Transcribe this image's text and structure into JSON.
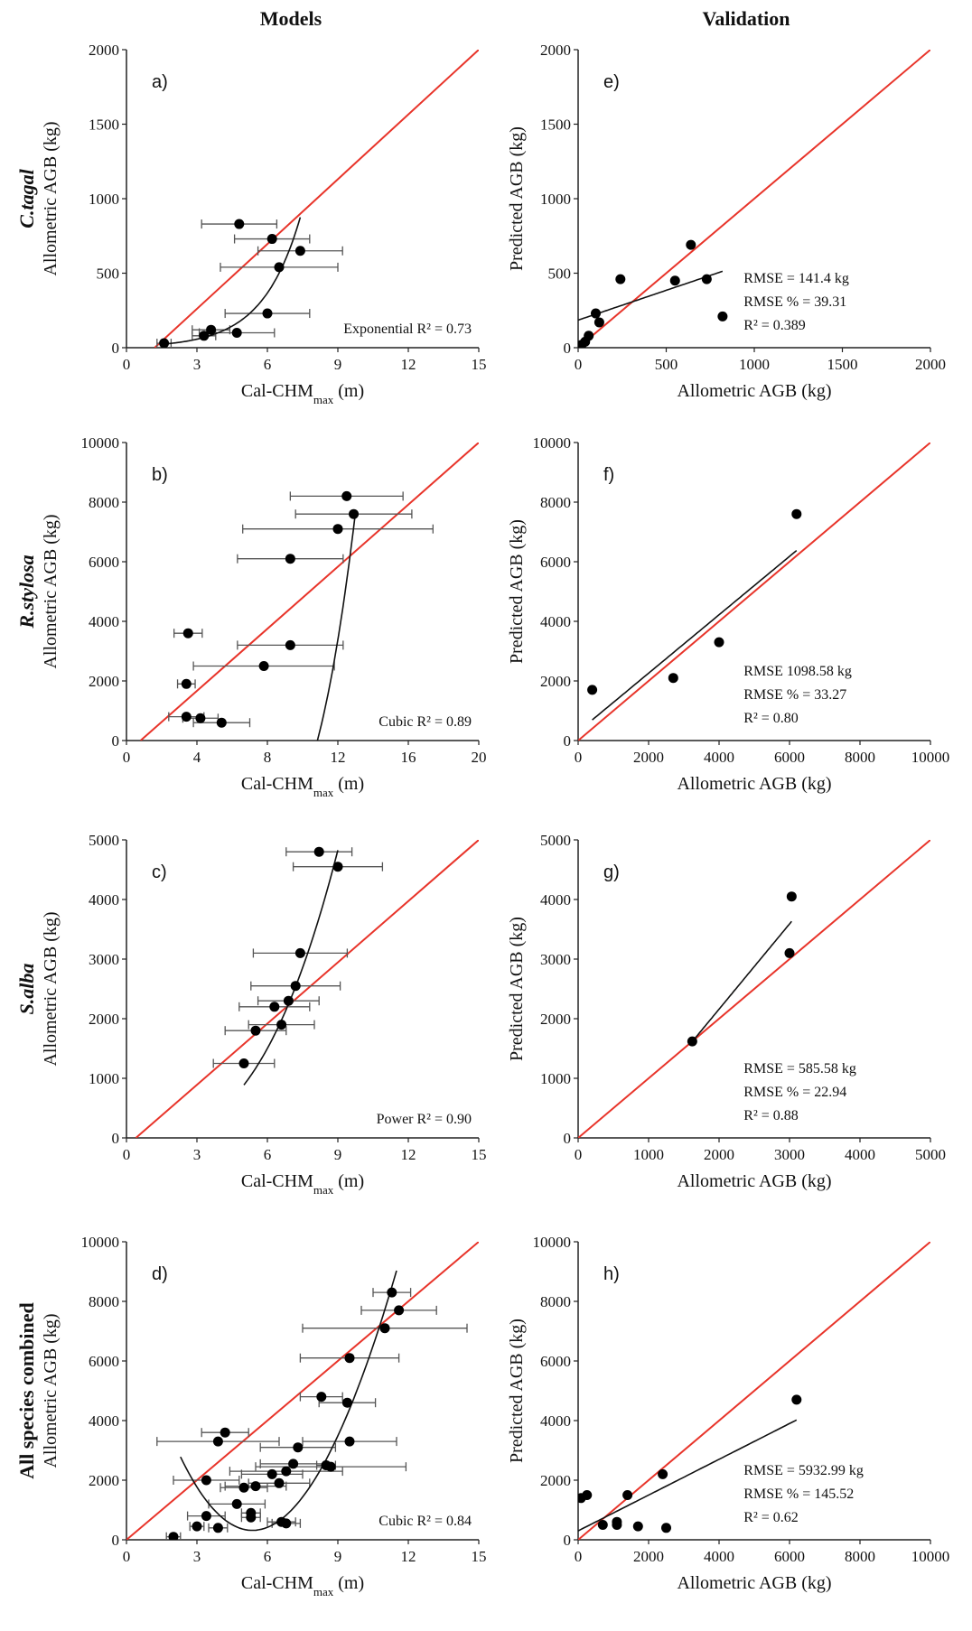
{
  "titles": {
    "models": "Models",
    "validation": "Validation"
  },
  "chart_data": [
    {
      "id": "a",
      "type": "scatter",
      "panel_label": "a)",
      "title": "",
      "xlabel": "Cal-CHM",
      "xlabel_sub": "max",
      "xlabel_unit": " (m)",
      "ylabel": "Allometric AGB (kg)",
      "row_label": "C.tagal",
      "row_label_italic": true,
      "xlim": [
        0,
        15
      ],
      "ylim": [
        0,
        2000
      ],
      "xticks": [
        0,
        3,
        6,
        9,
        12,
        15
      ],
      "yticks": [
        0,
        500,
        1000,
        1500,
        2000
      ],
      "identity_line": {
        "x": [
          1.2,
          15
        ],
        "y": [
          0,
          2000
        ]
      },
      "points": [
        {
          "x": 4.8,
          "y": 830,
          "xerr": 1.6
        },
        {
          "x": 6.2,
          "y": 730,
          "xerr": 1.6
        },
        {
          "x": 7.4,
          "y": 650,
          "xerr": 1.8
        },
        {
          "x": 6.5,
          "y": 540,
          "xerr": 2.5
        },
        {
          "x": 6.0,
          "y": 230,
          "xerr": 1.8
        },
        {
          "x": 4.7,
          "y": 100,
          "xerr": 1.6
        },
        {
          "x": 3.6,
          "y": 120,
          "xerr": 0.8
        },
        {
          "x": 3.3,
          "y": 80,
          "xerr": 0.5
        },
        {
          "x": 1.6,
          "y": 30,
          "xerr": 0.3
        }
      ],
      "fit": {
        "kind": "exponential",
        "a": 8.9,
        "b": 0.62,
        "x_from": 1.6,
        "x_to": 7.4
      },
      "annotation": [
        "Exponential R² = 0.73"
      ],
      "annotation_pos": "bottom-right"
    },
    {
      "id": "b",
      "type": "scatter",
      "panel_label": "b)",
      "xlabel": "Cal-CHM",
      "xlabel_sub": "max",
      "xlabel_unit": " (m)",
      "ylabel": "Allometric AGB (kg)",
      "row_label": "R.stylosa",
      "row_label_italic": true,
      "xlim": [
        0,
        20
      ],
      "ylim": [
        0,
        10000
      ],
      "xticks": [
        0,
        4,
        8,
        12,
        16,
        20
      ],
      "yticks": [
        0,
        2000,
        4000,
        6000,
        8000,
        10000
      ],
      "identity_line": {
        "x": [
          0.8,
          20
        ],
        "y": [
          0,
          10000
        ]
      },
      "points": [
        {
          "x": 12.5,
          "y": 8200,
          "xerr": 3.2
        },
        {
          "x": 12.9,
          "y": 7600,
          "xerr": 3.3
        },
        {
          "x": 12.0,
          "y": 7100,
          "xerr": 5.4
        },
        {
          "x": 9.3,
          "y": 6100,
          "xerr": 3.0
        },
        {
          "x": 3.5,
          "y": 3600,
          "xerr": 0.8
        },
        {
          "x": 9.3,
          "y": 3200,
          "xerr": 3.0
        },
        {
          "x": 7.8,
          "y": 2500,
          "xerr": 4.0
        },
        {
          "x": 3.4,
          "y": 1900,
          "xerr": 0.5
        },
        {
          "x": 3.4,
          "y": 800,
          "xerr": 1.0
        },
        {
          "x": 4.2,
          "y": 750,
          "xerr": 1.0
        },
        {
          "x": 5.4,
          "y": 600,
          "xerr": 1.6
        }
      ],
      "fit": {
        "kind": "cubic",
        "coef": [
          -2712.4,
          1963.2,
          -501.2,
          31.66
        ],
        "x_from": 3.4,
        "x_to": 13.0
      },
      "annotation": [
        "Cubic R² = 0.89"
      ],
      "annotation_pos": "bottom-right"
    },
    {
      "id": "c",
      "type": "scatter",
      "panel_label": "c)",
      "xlabel": "Cal-CHM",
      "xlabel_sub": "max",
      "xlabel_unit": " (m)",
      "ylabel": "Allometric AGB (kg)",
      "row_label": "S.alba",
      "row_label_italic": true,
      "xlim": [
        0,
        15
      ],
      "ylim": [
        0,
        5000
      ],
      "xticks": [
        0,
        3,
        6,
        9,
        12,
        15
      ],
      "yticks": [
        0,
        1000,
        2000,
        3000,
        4000,
        5000
      ],
      "identity_line": {
        "x": [
          0.4,
          15
        ],
        "y": [
          0,
          5000
        ]
      },
      "points": [
        {
          "x": 8.2,
          "y": 4800,
          "xerr": 1.4
        },
        {
          "x": 9.0,
          "y": 4550,
          "xerr": 1.9
        },
        {
          "x": 7.4,
          "y": 3100,
          "xerr": 2.0
        },
        {
          "x": 7.2,
          "y": 2550,
          "xerr": 1.9
        },
        {
          "x": 6.9,
          "y": 2300,
          "xerr": 1.3
        },
        {
          "x": 6.3,
          "y": 2200,
          "xerr": 1.5
        },
        {
          "x": 6.6,
          "y": 1900,
          "xerr": 1.4
        },
        {
          "x": 5.5,
          "y": 1800,
          "xerr": 1.3
        },
        {
          "x": 5.0,
          "y": 1250,
          "xerr": 1.3
        }
      ],
      "fit": {
        "kind": "power",
        "a": 8.62,
        "b": 2.88,
        "x_from": 5.0,
        "x_to": 9.0
      },
      "annotation": [
        "Power R² = 0.90"
      ],
      "annotation_pos": "bottom-right"
    },
    {
      "id": "d",
      "type": "scatter",
      "panel_label": "d)",
      "xlabel": "Cal-CHM",
      "xlabel_sub": "max",
      "xlabel_unit": " (m)",
      "ylabel": "Allometric AGB (kg)",
      "row_label": "All species combined",
      "row_label_italic": false,
      "xlim": [
        0,
        15
      ],
      "ylim": [
        0,
        10000
      ],
      "xticks": [
        0,
        3,
        6,
        9,
        12,
        15
      ],
      "yticks": [
        0,
        2000,
        4000,
        6000,
        8000,
        10000
      ],
      "identity_line": {
        "x": [
          0,
          15
        ],
        "y": [
          0,
          10000
        ]
      },
      "points": [
        {
          "x": 11.3,
          "y": 8300,
          "xerr": 0.8
        },
        {
          "x": 11.6,
          "y": 7700,
          "xerr": 1.6
        },
        {
          "x": 11.0,
          "y": 7100,
          "xerr": 3.5
        },
        {
          "x": 9.5,
          "y": 6100,
          "xerr": 2.1
        },
        {
          "x": 8.3,
          "y": 4800,
          "xerr": 0.9
        },
        {
          "x": 9.4,
          "y": 4600,
          "xerr": 1.2
        },
        {
          "x": 4.2,
          "y": 3600,
          "xerr": 1.0
        },
        {
          "x": 3.9,
          "y": 3300,
          "xerr": 2.6
        },
        {
          "x": 9.5,
          "y": 3300,
          "xerr": 2.0
        },
        {
          "x": 7.3,
          "y": 3100,
          "xerr": 1.6
        },
        {
          "x": 8.5,
          "y": 2500,
          "xerr": 0.4
        },
        {
          "x": 8.7,
          "y": 2450,
          "xerr": 3.2
        },
        {
          "x": 7.1,
          "y": 2550,
          "xerr": 1.4
        },
        {
          "x": 6.8,
          "y": 2300,
          "xerr": 2.4
        },
        {
          "x": 6.2,
          "y": 2200,
          "xerr": 1.3
        },
        {
          "x": 6.5,
          "y": 1900,
          "xerr": 1.3
        },
        {
          "x": 3.4,
          "y": 2000,
          "xerr": 1.4
        },
        {
          "x": 5.5,
          "y": 1800,
          "xerr": 1.3
        },
        {
          "x": 4.7,
          "y": 1200,
          "xerr": 1.2
        },
        {
          "x": 5.0,
          "y": 1750,
          "xerr": 1.0
        },
        {
          "x": 5.3,
          "y": 900,
          "xerr": 0.4
        },
        {
          "x": 5.3,
          "y": 750,
          "xerr": 0.4
        },
        {
          "x": 3.4,
          "y": 800,
          "xerr": 0.8
        },
        {
          "x": 6.6,
          "y": 600,
          "xerr": 0.6
        },
        {
          "x": 6.8,
          "y": 550,
          "xerr": 0.6
        },
        {
          "x": 3.0,
          "y": 450,
          "xerr": 0.3
        },
        {
          "x": 3.9,
          "y": 400,
          "xerr": 0.4
        },
        {
          "x": 2.0,
          "y": 100,
          "xerr": 0.3
        }
      ],
      "fit": {
        "kind": "cubic",
        "coef": [
          8100,
          -3000,
          307,
          -3.4
        ],
        "x_from": 2.3,
        "x_to": 11.5
      },
      "annotation": [
        "Cubic R² = 0.84"
      ],
      "annotation_pos": "bottom-right"
    },
    {
      "id": "e",
      "type": "scatter",
      "panel_label": "e)",
      "xlabel": "Allometric AGB (kg)",
      "ylabel": "Predicted AGB (kg)",
      "xlim": [
        0,
        2000
      ],
      "ylim": [
        0,
        2000
      ],
      "xticks": [
        0,
        500,
        1000,
        1500,
        2000
      ],
      "yticks": [
        0,
        500,
        1000,
        1500,
        2000
      ],
      "identity_line": {
        "x": [
          0,
          2000
        ],
        "y": [
          0,
          2000
        ]
      },
      "points": [
        {
          "x": 240,
          "y": 460
        },
        {
          "x": 640,
          "y": 690
        },
        {
          "x": 550,
          "y": 450
        },
        {
          "x": 730,
          "y": 460
        },
        {
          "x": 820,
          "y": 210
        },
        {
          "x": 100,
          "y": 230
        },
        {
          "x": 120,
          "y": 170
        },
        {
          "x": 60,
          "y": 80
        },
        {
          "x": 40,
          "y": 40
        },
        {
          "x": 20,
          "y": 20
        },
        {
          "x": 10,
          "y": 10
        }
      ],
      "fit": {
        "kind": "linear",
        "slope": 0.4,
        "intercept": 185,
        "x_from": 0,
        "x_to": 820
      },
      "annotation": [
        "RMSE = 141.4 kg",
        "RMSE % = 39.31",
        "R² = 0.389"
      ],
      "annotation_pos": "right"
    },
    {
      "id": "f",
      "type": "scatter",
      "panel_label": "f)",
      "xlabel": "Allometric AGB (kg)",
      "ylabel": "Predicted AGB (kg)",
      "xlim": [
        0,
        10000
      ],
      "ylim": [
        0,
        10000
      ],
      "xticks": [
        0,
        2000,
        4000,
        6000,
        8000,
        10000
      ],
      "yticks": [
        0,
        2000,
        4000,
        6000,
        8000,
        10000
      ],
      "identity_line": {
        "x": [
          0,
          10000
        ],
        "y": [
          0,
          10000
        ]
      },
      "points": [
        {
          "x": 400,
          "y": 1700
        },
        {
          "x": 2700,
          "y": 2100
        },
        {
          "x": 4000,
          "y": 3300
        },
        {
          "x": 6200,
          "y": 7600
        }
      ],
      "fit": {
        "kind": "linear",
        "slope": 0.98,
        "intercept": 300,
        "x_from": 400,
        "x_to": 6200
      },
      "annotation": [
        "RMSE 1098.58 kg",
        "RMSE % = 33.27",
        "R² = 0.80"
      ],
      "annotation_pos": "right"
    },
    {
      "id": "g",
      "type": "scatter",
      "panel_label": "g)",
      "xlabel": "Allometric AGB (kg)",
      "ylabel": "Predicted AGB (kg)",
      "xlim": [
        0,
        5000
      ],
      "ylim": [
        0,
        5000
      ],
      "xticks": [
        0,
        1000,
        2000,
        3000,
        4000,
        5000
      ],
      "yticks": [
        0,
        1000,
        2000,
        3000,
        4000,
        5000
      ],
      "identity_line": {
        "x": [
          0,
          5000
        ],
        "y": [
          0,
          5000
        ]
      },
      "points": [
        {
          "x": 1620,
          "y": 1620
        },
        {
          "x": 3000,
          "y": 3100
        },
        {
          "x": 3030,
          "y": 4050
        }
      ],
      "fit": {
        "kind": "linear",
        "slope": 1.43,
        "intercept": -700,
        "x_from": 1620,
        "x_to": 3030
      },
      "annotation": [
        "RMSE = 585.58 kg",
        "RMSE % = 22.94",
        "R² = 0.88"
      ],
      "annotation_pos": "right"
    },
    {
      "id": "h",
      "type": "scatter",
      "panel_label": "h)",
      "xlabel": "Allometric AGB (kg)",
      "ylabel": "Predicted AGB (kg)",
      "xlim": [
        0,
        10000
      ],
      "ylim": [
        0,
        10000
      ],
      "xticks": [
        0,
        2000,
        4000,
        6000,
        8000,
        10000
      ],
      "yticks": [
        0,
        2000,
        4000,
        6000,
        8000,
        10000
      ],
      "identity_line": {
        "x": [
          0,
          10000
        ],
        "y": [
          0,
          10000
        ]
      },
      "points": [
        {
          "x": 80,
          "y": 1400
        },
        {
          "x": 250,
          "y": 1500
        },
        {
          "x": 700,
          "y": 500
        },
        {
          "x": 1100,
          "y": 600
        },
        {
          "x": 1100,
          "y": 500
        },
        {
          "x": 1400,
          "y": 1500
        },
        {
          "x": 1700,
          "y": 450
        },
        {
          "x": 2400,
          "y": 2200
        },
        {
          "x": 2500,
          "y": 400
        },
        {
          "x": 6200,
          "y": 4700
        }
      ],
      "fit": {
        "kind": "linear",
        "slope": 0.6,
        "intercept": 300,
        "x_from": 0,
        "x_to": 6200
      },
      "annotation": [
        "RMSE = 5932.99 kg",
        "RMSE % = 145.52",
        "R² = 0.62"
      ],
      "annotation_pos": "right"
    }
  ],
  "colors": {
    "identity": "#e8342a",
    "points": "#000000",
    "fit": "#111111",
    "errorbar": "#555555",
    "axis": "#222222"
  }
}
